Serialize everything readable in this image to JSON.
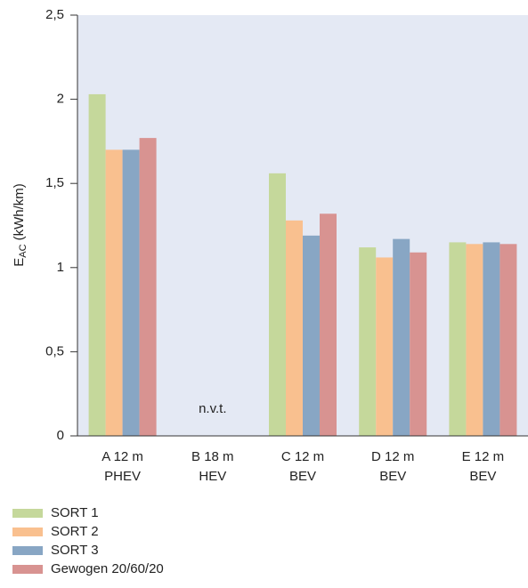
{
  "chart_data": {
    "type": "bar",
    "ylabel": {
      "symbol": "E",
      "subscript": "AC",
      "unit": "(kWh/km)"
    },
    "categories": [
      [
        "A 12 m",
        "PHEV"
      ],
      [
        "B 18 m",
        "HEV"
      ],
      [
        "C 12 m",
        "BEV"
      ],
      [
        "D 12 m",
        "BEV"
      ],
      [
        "E 12 m",
        "BEV"
      ]
    ],
    "series": [
      {
        "name": "SORT 1",
        "color": "#c5d89b",
        "values": [
          2.03,
          null,
          1.56,
          1.12,
          1.15
        ]
      },
      {
        "name": "SORT 2",
        "color": "#f9c08f",
        "values": [
          1.7,
          null,
          1.28,
          1.06,
          1.14
        ]
      },
      {
        "name": "SORT 3",
        "color": "#88a6c4",
        "values": [
          1.7,
          null,
          1.19,
          1.17,
          1.15
        ]
      },
      {
        "name": "Gewogen 20/60/20",
        "color": "#d89391",
        "values": [
          1.77,
          null,
          1.32,
          1.09,
          1.14
        ]
      }
    ],
    "annotations": [
      {
        "category": 1,
        "text": "n.v.t."
      }
    ],
    "ylim": [
      0,
      2.5
    ],
    "yticks": [
      0,
      {
        "value": 0.5,
        "label": "0,5"
      },
      1,
      {
        "value": 1.5,
        "label": "1,5"
      },
      2,
      {
        "value": 2.5,
        "label": "2,5"
      }
    ],
    "background": "#e4e9f4"
  }
}
